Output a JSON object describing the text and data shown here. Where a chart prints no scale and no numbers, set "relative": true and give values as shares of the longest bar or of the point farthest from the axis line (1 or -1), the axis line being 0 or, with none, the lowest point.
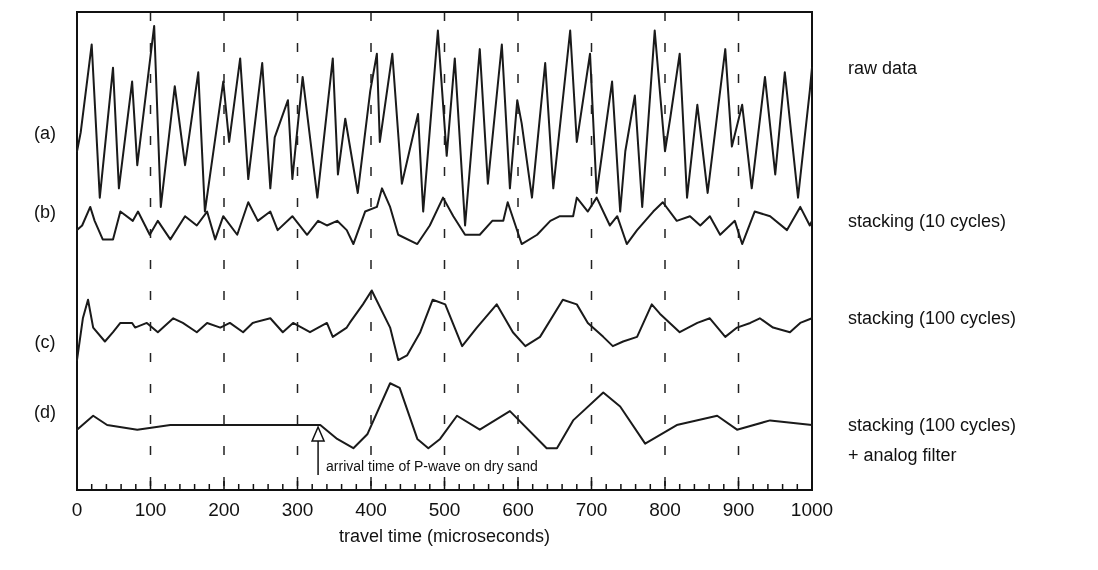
{
  "chart_data": {
    "type": "line",
    "relative": true,
    "xlabel": "travel time (microseconds)",
    "xlim": [
      0,
      1000
    ],
    "xticks": [
      0,
      {
        "value": 20,
        "label": null
      },
      {
        "value": 40,
        "label": null
      },
      {
        "value": 60,
        "label": null
      },
      {
        "value": 80,
        "label": null
      },
      100,
      {
        "value": 120,
        "label": null
      },
      {
        "value": 140,
        "label": null
      },
      {
        "value": 160,
        "label": null
      },
      {
        "value": 180,
        "label": null
      },
      200,
      {
        "value": 220,
        "label": null
      },
      {
        "value": 240,
        "label": null
      },
      {
        "value": 260,
        "label": null
      },
      {
        "value": 280,
        "label": null
      },
      300,
      {
        "value": 320,
        "label": null
      },
      {
        "value": 340,
        "label": null
      },
      {
        "value": 360,
        "label": null
      },
      {
        "value": 380,
        "label": null
      },
      400,
      {
        "value": 420,
        "label": null
      },
      {
        "value": 440,
        "label": null
      },
      {
        "value": 460,
        "label": null
      },
      {
        "value": 480,
        "label": null
      },
      500,
      {
        "value": 520,
        "label": null
      },
      {
        "value": 540,
        "label": null
      },
      {
        "value": 560,
        "label": null
      },
      {
        "value": 580,
        "label": null
      },
      600,
      {
        "value": 620,
        "label": null
      },
      {
        "value": 640,
        "label": null
      },
      {
        "value": 660,
        "label": null
      },
      {
        "value": 680,
        "label": null
      },
      700,
      {
        "value": 720,
        "label": null
      },
      {
        "value": 740,
        "label": null
      },
      {
        "value": 760,
        "label": null
      },
      {
        "value": 780,
        "label": null
      },
      800,
      {
        "value": 820,
        "label": null
      },
      {
        "value": 840,
        "label": null
      },
      {
        "value": 860,
        "label": null
      },
      {
        "value": 880,
        "label": null
      },
      900,
      {
        "value": 920,
        "label": null
      },
      {
        "value": 940,
        "label": null
      },
      {
        "value": 960,
        "label": null
      },
      {
        "value": 980,
        "label": null
      },
      1000
    ],
    "grid": "x",
    "tick_labels": "x",
    "marker": "none",
    "line_style": "solid",
    "annotations": [
      "(a)",
      "(b)",
      "(c)",
      "(d)",
      {
        "text": "arrival time of P-wave on dry sand",
        "x": 328,
        "y": 0.14
      }
    ],
    "series": [
      {
        "name": "raw data",
        "color": "#1a1a1a",
        "x": [
          0,
          5,
          20,
          31,
          49,
          57,
          75,
          82,
          105,
          114,
          133,
          147,
          165,
          174,
          199,
          207,
          222,
          233,
          252,
          263,
          269,
          287,
          293,
          307,
          327,
          348,
          355,
          365,
          382,
          399,
          408,
          412,
          429,
          442,
          464,
          471,
          491,
          503,
          514,
          528,
          548,
          559,
          578,
          589,
          599,
          605,
          619,
          637,
          648,
          671,
          680,
          698,
          707,
          728,
          739,
          746,
          759,
          769,
          786,
          800,
          807,
          820,
          830,
          844,
          858,
          882,
          891,
          905,
          918,
          936,
          950,
          963,
          981,
          997,
          1000
        ],
        "values": [
          0.73,
          0.77,
          0.96,
          0.63,
          0.91,
          0.65,
          0.88,
          0.7,
          1.0,
          0.61,
          0.87,
          0.7,
          0.9,
          0.6,
          0.88,
          0.75,
          0.93,
          0.67,
          0.92,
          0.65,
          0.76,
          0.84,
          0.67,
          0.89,
          0.63,
          0.93,
          0.68,
          0.8,
          0.64,
          0.86,
          0.94,
          0.75,
          0.94,
          0.66,
          0.81,
          0.6,
          0.99,
          0.72,
          0.93,
          0.57,
          0.95,
          0.66,
          0.96,
          0.65,
          0.84,
          0.79,
          0.63,
          0.92,
          0.65,
          0.99,
          0.75,
          0.94,
          0.64,
          0.88,
          0.6,
          0.73,
          0.85,
          0.61,
          0.99,
          0.73,
          0.8,
          0.94,
          0.63,
          0.83,
          0.64,
          0.95,
          0.74,
          0.83,
          0.65,
          0.89,
          0.68,
          0.9,
          0.63,
          0.86,
          0.91
        ]
      },
      {
        "name": "stacking (10 cycles)",
        "color": "#1a1a1a",
        "x": [
          0,
          7,
          18,
          24,
          35,
          49,
          59,
          76,
          83,
          99,
          110,
          127,
          147,
          163,
          177,
          188,
          199,
          218,
          233,
          246,
          263,
          273,
          293,
          313,
          328,
          340,
          354,
          367,
          376,
          392,
          408,
          415,
          426,
          437,
          463,
          480,
          498,
          512,
          528,
          548,
          565,
          580,
          586,
          605,
          626,
          644,
          657,
          675,
          680,
          695,
          707,
          725,
          735,
          748,
          762,
          784,
          797,
          816,
          834,
          848,
          861,
          875,
          895,
          905,
          922,
          943,
          966,
          984,
          997,
          1000
        ],
        "values": [
          0.56,
          0.57,
          0.61,
          0.58,
          0.54,
          0.54,
          0.6,
          0.58,
          0.6,
          0.55,
          0.58,
          0.54,
          0.59,
          0.57,
          0.6,
          0.54,
          0.59,
          0.55,
          0.62,
          0.58,
          0.6,
          0.56,
          0.59,
          0.55,
          0.58,
          0.57,
          0.58,
          0.56,
          0.53,
          0.6,
          0.61,
          0.65,
          0.61,
          0.55,
          0.53,
          0.57,
          0.63,
          0.59,
          0.55,
          0.55,
          0.58,
          0.58,
          0.62,
          0.53,
          0.55,
          0.58,
          0.59,
          0.59,
          0.63,
          0.6,
          0.63,
          0.57,
          0.59,
          0.53,
          0.56,
          0.6,
          0.62,
          0.58,
          0.59,
          0.57,
          0.59,
          0.55,
          0.58,
          0.53,
          0.6,
          0.59,
          0.56,
          0.61,
          0.57,
          0.58
        ]
      },
      {
        "name": "stacking (100 cycles)",
        "color": "#1a1a1a",
        "x": [
          0,
          8,
          15,
          22,
          38,
          49,
          59,
          75,
          79,
          95,
          110,
          131,
          144,
          163,
          177,
          195,
          208,
          226,
          239,
          263,
          280,
          294,
          317,
          340,
          348,
          367,
          371,
          389,
          401,
          426,
          437,
          449,
          467,
          484,
          501,
          524,
          544,
          571,
          593,
          610,
          630,
          661,
          680,
          695,
          716,
          729,
          743,
          762,
          782,
          793,
          820,
          844,
          861,
          882,
          898,
          916,
          929,
          947,
          970,
          984,
          1000
        ],
        "values": [
          0.28,
          0.37,
          0.41,
          0.35,
          0.32,
          0.34,
          0.36,
          0.36,
          0.35,
          0.36,
          0.34,
          0.37,
          0.36,
          0.34,
          0.36,
          0.35,
          0.36,
          0.34,
          0.36,
          0.37,
          0.34,
          0.36,
          0.34,
          0.36,
          0.33,
          0.35,
          0.36,
          0.4,
          0.43,
          0.35,
          0.28,
          0.29,
          0.34,
          0.41,
          0.4,
          0.31,
          0.35,
          0.4,
          0.34,
          0.31,
          0.33,
          0.41,
          0.4,
          0.36,
          0.33,
          0.31,
          0.32,
          0.33,
          0.4,
          0.38,
          0.34,
          0.36,
          0.37,
          0.33,
          0.35,
          0.36,
          0.37,
          0.35,
          0.34,
          0.36,
          0.37
        ]
      },
      {
        "name": "stacking (100 cycles)\n+ analog filter",
        "color": "#1a1a1a",
        "x": [
          0,
          22,
          41,
          82,
          127,
          195,
          263,
          331,
          354,
          376,
          395,
          426,
          439,
          463,
          478,
          494,
          517,
          548,
          589,
          639,
          653,
          675,
          716,
          739,
          773,
          816,
          871,
          898,
          943,
          1000
        ],
        "values": [
          0.13,
          0.16,
          0.14,
          0.13,
          0.14,
          0.14,
          0.14,
          0.14,
          0.11,
          0.09,
          0.12,
          0.23,
          0.22,
          0.11,
          0.09,
          0.11,
          0.16,
          0.13,
          0.17,
          0.09,
          0.09,
          0.15,
          0.21,
          0.18,
          0.1,
          0.14,
          0.16,
          0.13,
          0.15,
          0.14
        ]
      }
    ]
  }
}
